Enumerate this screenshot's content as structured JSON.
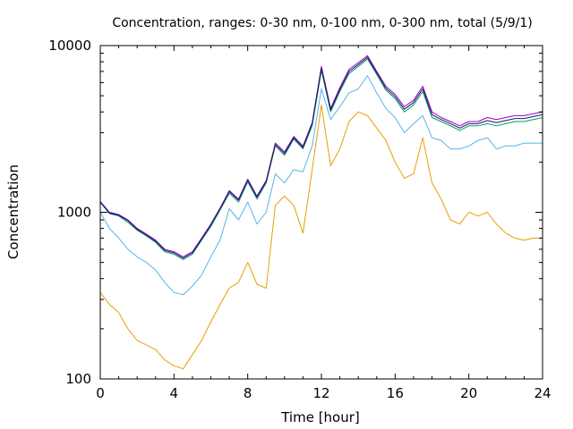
{
  "chart_data": {
    "type": "line",
    "title": "Concentration, ranges: 0-30 nm, 0-100 nm, 0-300 nm, total (5/9/1)",
    "xlabel": "Time [hour]",
    "ylabel": "Concentration",
    "xlim": [
      0,
      24
    ],
    "ylim": [
      100,
      10000
    ],
    "yscale": "log",
    "grid": false,
    "legend": "none",
    "x_ticks": [
      0,
      4,
      8,
      12,
      16,
      20,
      24
    ],
    "x_tick_labels": [
      "0",
      "4",
      "8",
      "12",
      "16",
      "20",
      "24"
    ],
    "y_ticks": [
      100,
      1000,
      10000
    ],
    "y_tick_labels": [
      "100",
      "1000",
      "10000"
    ],
    "x": [
      0,
      0.5,
      1,
      1.5,
      2,
      2.5,
      3,
      3.5,
      4,
      4.5,
      5,
      5.5,
      6,
      6.5,
      7,
      7.5,
      8,
      8.5,
      9,
      9.5,
      10,
      10.5,
      11,
      11.5,
      12,
      12.5,
      13,
      13.5,
      14,
      14.5,
      15,
      15.5,
      16,
      16.5,
      17,
      17.5,
      18,
      18.5,
      19,
      19.5,
      20,
      20.5,
      21,
      21.5,
      22,
      22.5,
      23,
      23.5,
      24
    ],
    "series": [
      {
        "color": "#e69f00",
        "values": [
          330,
          280,
          250,
          200,
          170,
          160,
          150,
          130,
          120,
          115,
          140,
          170,
          220,
          280,
          350,
          380,
          500,
          370,
          350,
          1100,
          1250,
          1100,
          750,
          1800,
          4400,
          1900,
          2400,
          3500,
          4000,
          3800,
          3200,
          2700,
          2000,
          1600,
          1700,
          2800,
          1500,
          1200,
          900,
          850,
          1000,
          950,
          1000,
          850,
          750,
          700,
          680,
          700,
          700
        ]
      },
      {
        "color": "#56b4e9",
        "values": [
          1000,
          800,
          700,
          600,
          540,
          500,
          450,
          380,
          330,
          320,
          360,
          420,
          540,
          680,
          1050,
          900,
          1150,
          850,
          1000,
          1700,
          1500,
          1800,
          1750,
          2500,
          5500,
          3600,
          4300,
          5200,
          5500,
          6600,
          5200,
          4200,
          3700,
          3000,
          3400,
          3800,
          2800,
          2700,
          2400,
          2400,
          2500,
          2700,
          2800,
          2400,
          2500,
          2500,
          2600,
          2600,
          2600
        ]
      },
      {
        "color": "#009e73",
        "values": [
          1150,
          980,
          950,
          870,
          780,
          720,
          660,
          580,
          560,
          520,
          560,
          680,
          820,
          1030,
          1300,
          1150,
          1520,
          1200,
          1500,
          2500,
          2200,
          2750,
          2400,
          3300,
          7100,
          4000,
          5300,
          6800,
          7500,
          8300,
          6700,
          5400,
          4800,
          4000,
          4400,
          5300,
          3700,
          3500,
          3300,
          3100,
          3300,
          3300,
          3400,
          3300,
          3400,
          3500,
          3500,
          3600,
          3700
        ]
      },
      {
        "color": "#9400d3",
        "values": [
          1160,
          1000,
          970,
          900,
          800,
          740,
          680,
          600,
          580,
          540,
          580,
          700,
          850,
          1060,
          1350,
          1200,
          1580,
          1250,
          1550,
          2600,
          2300,
          2850,
          2500,
          3450,
          7500,
          4200,
          5600,
          7200,
          7900,
          8700,
          7000,
          5700,
          5100,
          4300,
          4700,
          5700,
          4000,
          3700,
          3500,
          3300,
          3500,
          3500,
          3700,
          3600,
          3700,
          3800,
          3800,
          3900,
          4000
        ]
      },
      {
        "color": "#1a1a50",
        "values": [
          1150,
          990,
          960,
          890,
          790,
          730,
          670,
          590,
          570,
          530,
          570,
          690,
          840,
          1050,
          1330,
          1180,
          1560,
          1230,
          1530,
          2550,
          2250,
          2800,
          2450,
          3400,
          7300,
          4100,
          5450,
          7000,
          7700,
          8500,
          6850,
          5550,
          4950,
          4150,
          4550,
          5500,
          3850,
          3600,
          3400,
          3200,
          3400,
          3400,
          3550,
          3450,
          3550,
          3650,
          3650,
          3750,
          3850
        ]
      }
    ]
  }
}
